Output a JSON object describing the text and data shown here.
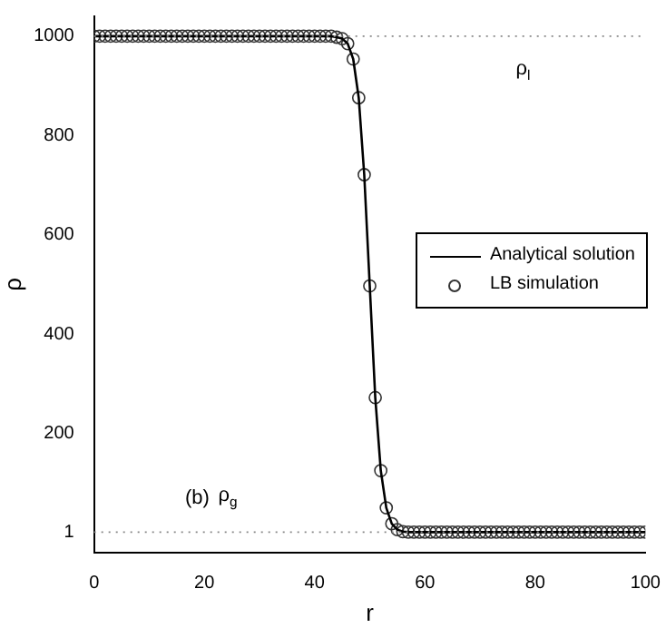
{
  "chart_data": {
    "type": "line",
    "xlabel": "r",
    "ylabel": "ρ",
    "x": [
      0,
      1,
      2,
      3,
      4,
      5,
      6,
      7,
      8,
      9,
      10,
      11,
      12,
      13,
      14,
      15,
      16,
      17,
      18,
      19,
      20,
      21,
      22,
      23,
      24,
      25,
      26,
      27,
      28,
      29,
      30,
      31,
      32,
      33,
      34,
      35,
      36,
      37,
      38,
      39,
      40,
      41,
      42,
      43,
      44,
      45,
      46,
      47,
      48,
      49,
      50,
      51,
      52,
      53,
      54,
      55,
      56,
      57,
      58,
      59,
      60,
      61,
      62,
      63,
      64,
      65,
      66,
      67,
      68,
      69,
      70,
      71,
      72,
      73,
      74,
      75,
      76,
      77,
      78,
      79,
      80,
      81,
      82,
      83,
      84,
      85,
      86,
      87,
      88,
      89,
      90,
      91,
      92,
      93,
      94,
      95,
      96,
      97,
      98,
      99,
      100
    ],
    "series": [
      {
        "name": "Analytical solution",
        "type": "line",
        "marker": "none",
        "color": "#000000",
        "values": [
          1000,
          1000,
          1000,
          1000,
          1000,
          1000,
          1000,
          1000,
          1000,
          1000,
          1000,
          1000,
          1000,
          1000,
          1000,
          1000,
          1000,
          1000,
          1000,
          1000,
          1000,
          1000,
          1000,
          1000,
          1000,
          1000,
          1000,
          1000,
          1000,
          1000,
          1000,
          1000,
          1000,
          1000,
          1000,
          1000,
          1000,
          1000,
          1000,
          1000,
          1000,
          1000,
          1000,
          1000,
          998,
          995,
          985,
          954,
          876,
          721,
          497,
          272,
          125,
          50,
          18,
          6,
          2,
          1,
          1,
          1,
          1,
          1,
          1,
          1,
          1,
          1,
          1,
          1,
          1,
          1,
          1,
          1,
          1,
          1,
          1,
          1,
          1,
          1,
          1,
          1,
          1,
          1,
          1,
          1,
          1,
          1,
          1,
          1,
          1,
          1,
          1,
          1,
          1,
          1,
          1,
          1,
          1,
          1,
          1,
          1,
          1
        ]
      },
      {
        "name": "LB simulation",
        "type": "scatter",
        "marker": "circle",
        "color": "#333333",
        "values": [
          1000,
          1000,
          1000,
          1000,
          1000,
          1000,
          1000,
          1000,
          1000,
          1000,
          1000,
          1000,
          1000,
          1000,
          1000,
          1000,
          1000,
          1000,
          1000,
          1000,
          1000,
          1000,
          1000,
          1000,
          1000,
          1000,
          1000,
          1000,
          1000,
          1000,
          1000,
          1000,
          1000,
          1000,
          1000,
          1000,
          1000,
          1000,
          1000,
          1000,
          1000,
          1000,
          1000,
          1000,
          998,
          995,
          985,
          954,
          876,
          721,
          497,
          272,
          125,
          50,
          18,
          6,
          2,
          1,
          1,
          1,
          1,
          1,
          1,
          1,
          1,
          1,
          1,
          1,
          1,
          1,
          1,
          1,
          1,
          1,
          1,
          1,
          1,
          1,
          1,
          1,
          1,
          1,
          1,
          1,
          1,
          1,
          1,
          1,
          1,
          1,
          1,
          1,
          1,
          1,
          1,
          1,
          1,
          1,
          1,
          1,
          1
        ]
      }
    ],
    "xlim": [
      0,
      100
    ],
    "xticks": [
      0,
      20,
      40,
      60,
      80,
      100
    ],
    "ylim": [
      -40,
      1040
    ],
    "yticks": [
      1,
      200,
      400,
      600,
      800,
      1000
    ],
    "ref_lines": [
      {
        "axis": "y",
        "value": 1000,
        "label": "ρ$_{l}$",
        "color": "#888888",
        "line_style": "dotted"
      },
      {
        "axis": "y",
        "value": 1,
        "label": "ρ$_{g}$",
        "color": "#888888",
        "line_style": "dotted"
      }
    ],
    "annotations": [
      "(b)"
    ],
    "grid": false,
    "legend": "right"
  }
}
